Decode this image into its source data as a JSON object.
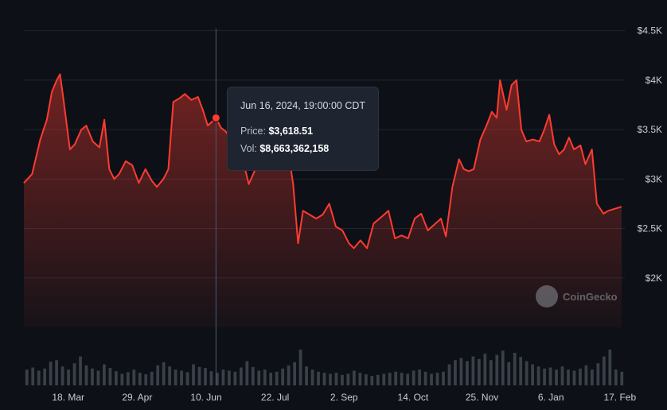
{
  "chart_data": {
    "type": "area",
    "y_ticks": [
      "$4.5K",
      "$4K",
      "$3.5K",
      "$3K",
      "$2.5K",
      "$2K"
    ],
    "y_tick_values": [
      4500,
      4000,
      3500,
      3000,
      2500,
      2000
    ],
    "ylim": [
      1500,
      4650
    ],
    "x_ticks": [
      "18. Mar",
      "29. Apr",
      "10. Jun",
      "22. Jul",
      "2. Sep",
      "14. Oct",
      "25. Nov",
      "6. Jan",
      "17. Feb"
    ],
    "x_tick_dates": [
      "2024-03-18",
      "2024-04-29",
      "2024-06-10",
      "2024-07-22",
      "2024-09-02",
      "2024-10-14",
      "2024-11-25",
      "2025-01-06",
      "2025-02-17"
    ],
    "xlim": [
      "2024-02-20",
      "2025-02-20"
    ],
    "line_color": "#ff3b30",
    "crosshair_date": "2024-06-16",
    "series": [
      {
        "values": [
          [
            "2024-02-20",
            2960
          ],
          [
            "2024-02-25",
            3050
          ],
          [
            "2024-03-01",
            3400
          ],
          [
            "2024-03-05",
            3600
          ],
          [
            "2024-03-08",
            3880
          ],
          [
            "2024-03-11",
            4000
          ],
          [
            "2024-03-13",
            4060
          ],
          [
            "2024-03-15",
            3820
          ],
          [
            "2024-03-19",
            3300
          ],
          [
            "2024-03-22",
            3350
          ],
          [
            "2024-03-26",
            3500
          ],
          [
            "2024-03-29",
            3540
          ],
          [
            "2024-04-02",
            3380
          ],
          [
            "2024-04-06",
            3320
          ],
          [
            "2024-04-09",
            3600
          ],
          [
            "2024-04-12",
            3100
          ],
          [
            "2024-04-15",
            3000
          ],
          [
            "2024-04-18",
            3050
          ],
          [
            "2024-04-22",
            3180
          ],
          [
            "2024-04-26",
            3140
          ],
          [
            "2024-04-30",
            2960
          ],
          [
            "2024-05-04",
            3100
          ],
          [
            "2024-05-08",
            2980
          ],
          [
            "2024-05-11",
            2920
          ],
          [
            "2024-05-15",
            3000
          ],
          [
            "2024-05-18",
            3100
          ],
          [
            "2024-05-21",
            3780
          ],
          [
            "2024-05-25",
            3820
          ],
          [
            "2024-05-28",
            3860
          ],
          [
            "2024-06-01",
            3800
          ],
          [
            "2024-06-05",
            3830
          ],
          [
            "2024-06-08",
            3700
          ],
          [
            "2024-06-11",
            3540
          ],
          [
            "2024-06-16",
            3618
          ],
          [
            "2024-06-19",
            3520
          ],
          [
            "2024-06-22",
            3480
          ],
          [
            "2024-06-26",
            3380
          ],
          [
            "2024-06-30",
            3440
          ],
          [
            "2024-07-03",
            3150
          ],
          [
            "2024-07-06",
            2950
          ],
          [
            "2024-07-10",
            3100
          ],
          [
            "2024-07-14",
            3200
          ],
          [
            "2024-07-18",
            3460
          ],
          [
            "2024-07-22",
            3450
          ],
          [
            "2024-07-26",
            3200
          ],
          [
            "2024-07-30",
            3280
          ],
          [
            "2024-08-02",
            2950
          ],
          [
            "2024-08-05",
            2350
          ],
          [
            "2024-08-08",
            2680
          ],
          [
            "2024-08-12",
            2640
          ],
          [
            "2024-08-16",
            2600
          ],
          [
            "2024-08-20",
            2640
          ],
          [
            "2024-08-24",
            2750
          ],
          [
            "2024-08-28",
            2520
          ],
          [
            "2024-09-01",
            2480
          ],
          [
            "2024-09-05",
            2350
          ],
          [
            "2024-09-08",
            2300
          ],
          [
            "2024-09-12",
            2380
          ],
          [
            "2024-09-16",
            2300
          ],
          [
            "2024-09-20",
            2550
          ],
          [
            "2024-09-25",
            2620
          ],
          [
            "2024-09-29",
            2680
          ],
          [
            "2024-10-03",
            2400
          ],
          [
            "2024-10-07",
            2430
          ],
          [
            "2024-10-11",
            2400
          ],
          [
            "2024-10-15",
            2600
          ],
          [
            "2024-10-19",
            2650
          ],
          [
            "2024-10-23",
            2480
          ],
          [
            "2024-10-27",
            2540
          ],
          [
            "2024-10-31",
            2600
          ],
          [
            "2024-11-03",
            2420
          ],
          [
            "2024-11-07",
            2920
          ],
          [
            "2024-11-11",
            3200
          ],
          [
            "2024-11-14",
            3100
          ],
          [
            "2024-11-17",
            3080
          ],
          [
            "2024-11-20",
            3100
          ],
          [
            "2024-11-24",
            3400
          ],
          [
            "2024-11-28",
            3550
          ],
          [
            "2024-12-01",
            3680
          ],
          [
            "2024-12-04",
            3620
          ],
          [
            "2024-12-06",
            4000
          ],
          [
            "2024-12-10",
            3700
          ],
          [
            "2024-12-13",
            3950
          ],
          [
            "2024-12-16",
            4000
          ],
          [
            "2024-12-19",
            3500
          ],
          [
            "2024-12-22",
            3380
          ],
          [
            "2024-12-26",
            3400
          ],
          [
            "2024-12-30",
            3380
          ],
          [
            "2025-01-02",
            3500
          ],
          [
            "2025-01-05",
            3650
          ],
          [
            "2025-01-08",
            3350
          ],
          [
            "2025-01-11",
            3250
          ],
          [
            "2025-01-14",
            3300
          ],
          [
            "2025-01-17",
            3420
          ],
          [
            "2025-01-20",
            3300
          ],
          [
            "2025-01-24",
            3340
          ],
          [
            "2025-01-27",
            3150
          ],
          [
            "2025-01-31",
            3300
          ],
          [
            "2025-02-03",
            2750
          ],
          [
            "2025-02-07",
            2650
          ],
          [
            "2025-02-10",
            2680
          ],
          [
            "2025-02-14",
            2700
          ],
          [
            "2025-02-18",
            2720
          ]
        ]
      }
    ],
    "volume": [
      30,
      34,
      28,
      32,
      45,
      48,
      36,
      30,
      42,
      55,
      38,
      32,
      28,
      40,
      33,
      27,
      22,
      25,
      30,
      24,
      21,
      26,
      38,
      44,
      36,
      30,
      28,
      25,
      40,
      35,
      33,
      27,
      24,
      30,
      28,
      26,
      34,
      46,
      35,
      28,
      30,
      24,
      26,
      32,
      38,
      44,
      68,
      36,
      30,
      26,
      24,
      22,
      24,
      20,
      22,
      28,
      24,
      21,
      18,
      20,
      22,
      24,
      26,
      24,
      22,
      28,
      30,
      26,
      22,
      24,
      26,
      40,
      48,
      52,
      46,
      55,
      50,
      60,
      48,
      58,
      66,
      44,
      62,
      54,
      46,
      40,
      36,
      32,
      34,
      30,
      36,
      30,
      28,
      32,
      38,
      30,
      42,
      55,
      68,
      30,
      26
    ]
  },
  "tooltip": {
    "date": "Jun 16, 2024, 19:00:00 CDT",
    "price_label": "Price:",
    "price_value": "$3,618.51",
    "vol_label": "Vol:",
    "vol_value": "$8,663,362,158"
  },
  "watermark": {
    "text": "CoinGecko"
  },
  "colors": {
    "line": "#ff3b30",
    "background": "#0d1117",
    "grid": "#1f2630",
    "volume": "#3a4048",
    "crosshair": "#4a5a70"
  }
}
